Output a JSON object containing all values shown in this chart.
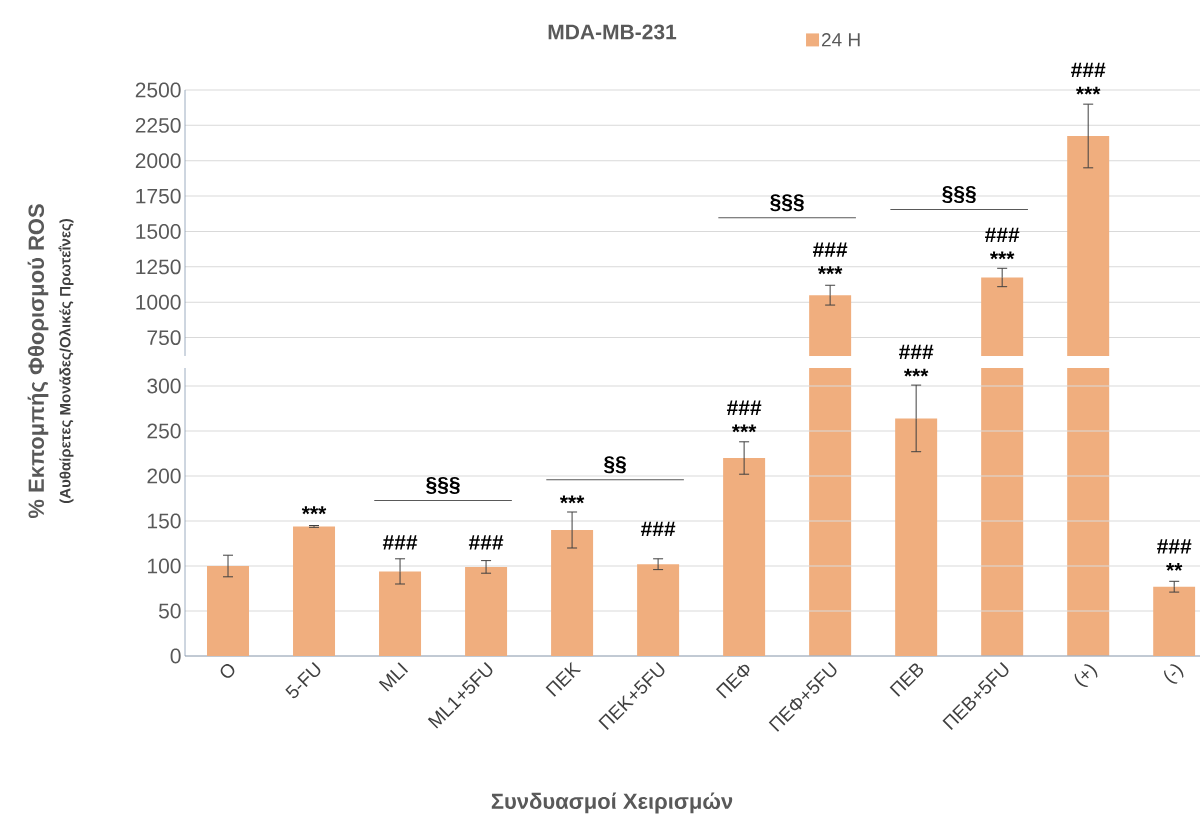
{
  "chart_data": [
    {
      "type": "bar",
      "title": "MDA-MB-231",
      "series": [
        {
          "name": "24 H",
          "color": "#f0ae7e",
          "values": [
            null,
            null,
            null,
            null,
            null,
            null,
            null,
            1050,
            null,
            1175,
            2175,
            null
          ],
          "errors": [
            null,
            null,
            null,
            null,
            null,
            null,
            null,
            70,
            null,
            65,
            225,
            null
          ]
        }
      ],
      "ylim": [
        620,
        2500
      ],
      "yticks": [
        750,
        1000,
        1250,
        1500,
        1750,
        2000,
        2250,
        2500
      ],
      "grid": "y",
      "legend": "top",
      "tick_labels": "y",
      "annotations": [
        "***",
        "###",
        "***",
        "###",
        "***",
        "###",
        "§§§",
        "§§§"
      ]
    },
    {
      "type": "bar",
      "xlabel": "Συνδυασμοί Χειρισμών",
      "ylabel": "% Εκπομπής Φθορισμού ROS",
      "categories": [
        "Ο",
        "5-FU",
        "MLI",
        "ML1+5FU",
        "ΠΕΚ",
        "ΠΕΚ+5FU",
        "ΠΕΦ",
        "ΠΕΦ+5FU",
        "ΠΕΒ",
        "ΠΕΒ+5FU",
        "(+)",
        "(-)"
      ],
      "series": [
        {
          "color": "#f0ae7e",
          "values": [
            100,
            144,
            94,
            99,
            140,
            102,
            220,
            null,
            264,
            null,
            null,
            77
          ],
          "errors": [
            12,
            1,
            14,
            7,
            20,
            6,
            18,
            null,
            37,
            null,
            null,
            6
          ]
        }
      ],
      "ylim": [
        0,
        320
      ],
      "yticks": [
        0,
        50,
        100,
        150,
        200,
        250,
        300
      ],
      "grid": "y",
      "annotations": [
        "(Αυθαίρετες Μονάδες/Ολικές Πρωτεΐνες)",
        "§§§",
        "§§",
        "***",
        "###",
        "###",
        "***",
        "###",
        "***",
        "###",
        "***",
        "###",
        "**",
        "###"
      ]
    }
  ]
}
